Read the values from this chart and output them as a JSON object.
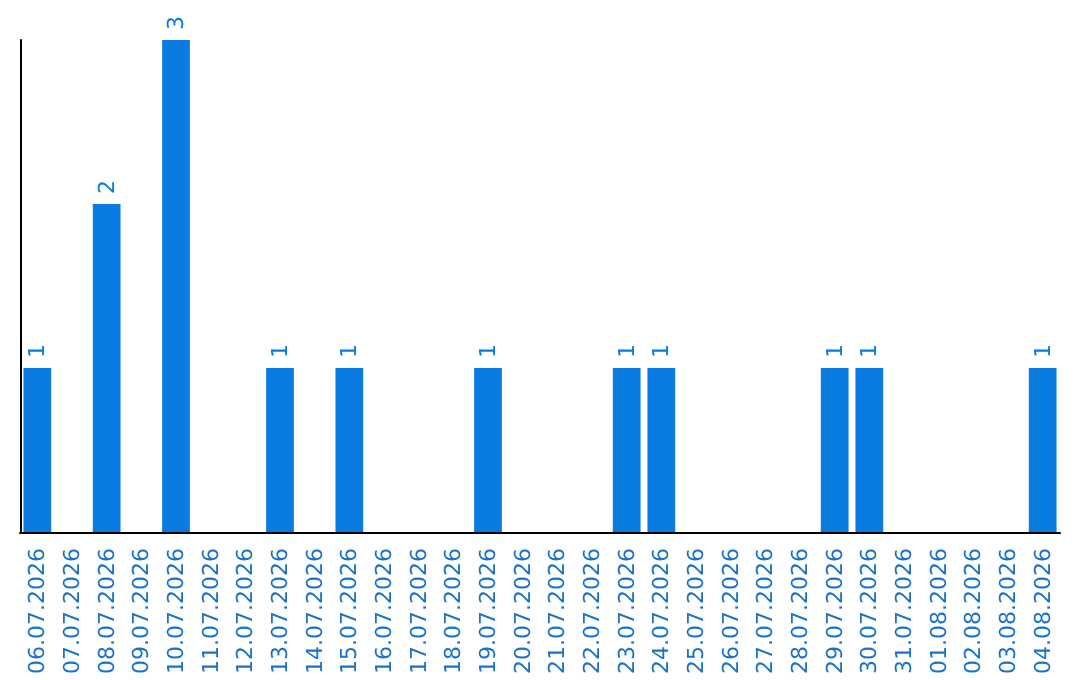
{
  "chart_data": {
    "type": "bar",
    "categories": [
      "06.07.2026",
      "07.07.2026",
      "08.07.2026",
      "09.07.2026",
      "10.07.2026",
      "11.07.2026",
      "12.07.2026",
      "13.07.2026",
      "14.07.2026",
      "15.07.2026",
      "16.07.2026",
      "17.07.2026",
      "18.07.2026",
      "19.07.2026",
      "20.07.2026",
      "21.07.2026",
      "22.07.2026",
      "23.07.2026",
      "24.07.2026",
      "25.07.2026",
      "26.07.2026",
      "27.07.2026",
      "28.07.2026",
      "29.07.2026",
      "30.07.2026",
      "31.07.2026",
      "01.08.2026",
      "02.08.2026",
      "03.08.2026",
      "04.08.2026"
    ],
    "values": [
      1,
      0,
      2,
      0,
      3,
      0,
      0,
      1,
      0,
      1,
      0,
      0,
      0,
      1,
      0,
      0,
      0,
      1,
      1,
      0,
      0,
      0,
      0,
      1,
      1,
      0,
      0,
      0,
      0,
      1
    ],
    "value_labels": [
      "1",
      null,
      "2",
      null,
      "3",
      null,
      null,
      "1",
      null,
      "1",
      null,
      null,
      null,
      "1",
      null,
      null,
      null,
      "1",
      "1",
      null,
      null,
      null,
      null,
      "1",
      "1",
      null,
      null,
      null,
      null,
      "1"
    ],
    "color": "#0a7be0",
    "grid": false,
    "tick_labels": "x"
  }
}
